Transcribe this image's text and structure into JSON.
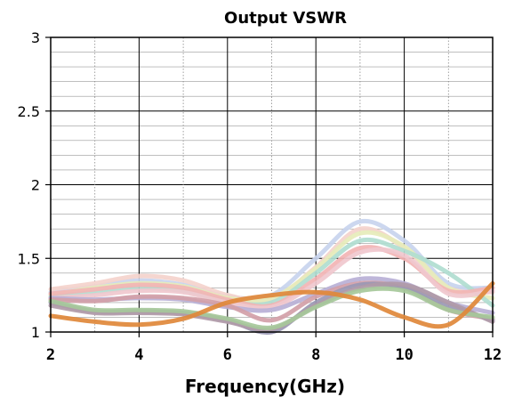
{
  "chart_data": {
    "type": "line",
    "title": "Output VSWR",
    "xlabel": "Frequency(GHz)",
    "ylabel": "",
    "xlim": [
      2,
      12
    ],
    "ylim": [
      1,
      3
    ],
    "x_ticks": [
      "2",
      "4",
      "6",
      "8",
      "10",
      "12"
    ],
    "y_ticks": [
      "1",
      "1.5",
      "2",
      "2.5",
      "3"
    ],
    "grid": true,
    "series": [
      {
        "color": "#c8d4ee",
        "x": [
          2,
          3,
          4,
          5,
          6,
          7,
          8,
          9,
          10,
          11,
          12
        ],
        "y": [
          1.27,
          1.31,
          1.35,
          1.32,
          1.24,
          1.25,
          1.5,
          1.75,
          1.62,
          1.33,
          1.3
        ]
      },
      {
        "color": "#f4d2cc",
        "x": [
          2,
          3,
          4,
          5,
          6,
          7,
          8,
          9,
          10,
          11,
          12
        ],
        "y": [
          1.29,
          1.33,
          1.38,
          1.35,
          1.25,
          1.22,
          1.44,
          1.7,
          1.57,
          1.3,
          1.27
        ]
      },
      {
        "color": "#e6ecba",
        "x": [
          2,
          3,
          4,
          5,
          6,
          7,
          8,
          9,
          10,
          11,
          12
        ],
        "y": [
          1.25,
          1.3,
          1.33,
          1.31,
          1.23,
          1.23,
          1.43,
          1.67,
          1.58,
          1.3,
          1.23
        ]
      },
      {
        "color": "#b0ddd0",
        "x": [
          2,
          3,
          4,
          5,
          6,
          7,
          8,
          9,
          10,
          11,
          12
        ],
        "y": [
          1.24,
          1.27,
          1.3,
          1.28,
          1.21,
          1.2,
          1.4,
          1.62,
          1.55,
          1.4,
          1.18
        ]
      },
      {
        "color": "#f2b4b4",
        "x": [
          2,
          3,
          4,
          5,
          6,
          7,
          8,
          9,
          10,
          11,
          12
        ],
        "y": [
          1.26,
          1.29,
          1.32,
          1.3,
          1.22,
          1.18,
          1.36,
          1.57,
          1.5,
          1.28,
          1.3
        ]
      },
      {
        "color": "#f0c8ce",
        "x": [
          2,
          3,
          4,
          5,
          6,
          7,
          8,
          9,
          10,
          11,
          12
        ],
        "y": [
          1.23,
          1.25,
          1.28,
          1.27,
          1.2,
          1.17,
          1.33,
          1.54,
          1.52,
          1.26,
          1.28
        ]
      },
      {
        "color": "#b8b0d6",
        "x": [
          2,
          3,
          4,
          5,
          6,
          7,
          8,
          9,
          10,
          11,
          12
        ],
        "y": [
          1.23,
          1.22,
          1.23,
          1.22,
          1.17,
          1.15,
          1.26,
          1.36,
          1.33,
          1.2,
          1.13
        ]
      },
      {
        "color": "#d2a0a8",
        "x": [
          2,
          3,
          4,
          5,
          6,
          7,
          8,
          9,
          10,
          11,
          12
        ],
        "y": [
          1.22,
          1.21,
          1.24,
          1.23,
          1.18,
          1.08,
          1.24,
          1.33,
          1.3,
          1.15,
          1.09
        ]
      },
      {
        "color": "#9a98b4",
        "x": [
          2,
          3,
          4,
          5,
          6,
          7,
          8,
          9,
          10,
          11,
          12
        ],
        "y": [
          1.2,
          1.14,
          1.14,
          1.13,
          1.08,
          1.0,
          1.2,
          1.32,
          1.3,
          1.18,
          1.08
        ]
      },
      {
        "color": "#b09aa8",
        "x": [
          2,
          3,
          4,
          5,
          6,
          7,
          8,
          9,
          10,
          11,
          12
        ],
        "y": [
          1.18,
          1.13,
          1.13,
          1.12,
          1.07,
          1.02,
          1.18,
          1.3,
          1.32,
          1.2,
          1.07
        ]
      },
      {
        "color": "#a6c89a",
        "x": [
          2,
          3,
          4,
          5,
          6,
          7,
          8,
          9,
          10,
          11,
          12
        ],
        "y": [
          1.21,
          1.15,
          1.15,
          1.14,
          1.09,
          1.03,
          1.17,
          1.28,
          1.28,
          1.15,
          1.1
        ]
      },
      {
        "color": "#e0883a",
        "x": [
          2,
          3,
          4,
          5,
          6,
          7,
          8,
          9,
          10,
          11,
          12
        ],
        "y": [
          1.11,
          1.07,
          1.05,
          1.09,
          1.2,
          1.25,
          1.27,
          1.22,
          1.1,
          1.05,
          1.33
        ]
      }
    ]
  }
}
